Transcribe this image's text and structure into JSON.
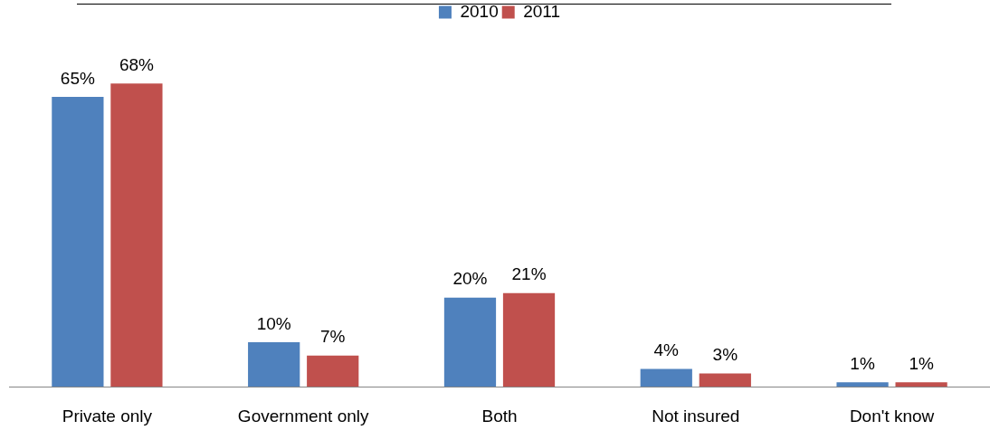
{
  "chart_data": {
    "type": "bar",
    "categories": [
      "Private only",
      "Government only",
      "Both",
      "Not insured",
      "Don't know"
    ],
    "series": [
      {
        "name": "2010",
        "color": "#4f81bd",
        "values": [
          65,
          10,
          20,
          4,
          1
        ],
        "value_labels": [
          "65%",
          "10%",
          "20%",
          "4%",
          "1%"
        ]
      },
      {
        "name": "2011",
        "color": "#c0504d",
        "values": [
          68,
          7,
          21,
          3,
          1
        ],
        "value_labels": [
          "68%",
          "7%",
          "21%",
          "3%",
          "1%"
        ]
      }
    ],
    "legend": "top",
    "grid": false
  }
}
